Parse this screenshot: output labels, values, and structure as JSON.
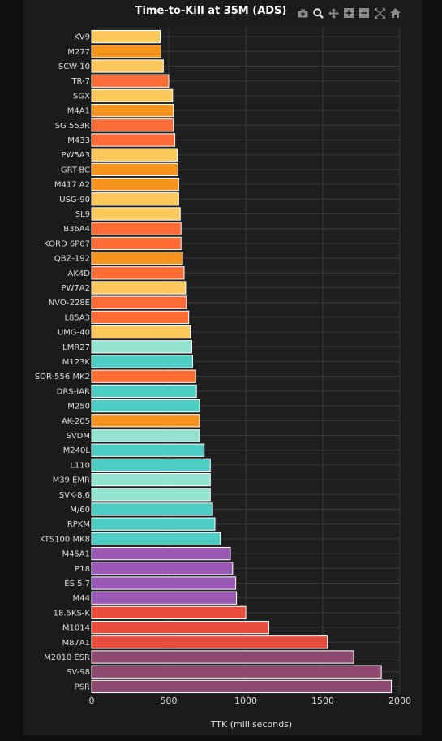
{
  "chart_data": {
    "type": "bar",
    "orientation": "horizontal",
    "title": "Time-to-Kill at 35M (ADS)",
    "xlabel": "TTK (milliseconds)",
    "ylabel": "",
    "xlim": [
      0,
      2000
    ],
    "xticks": [
      0,
      500,
      1000,
      1500,
      2000
    ],
    "grid": true,
    "categories": [
      "KV9",
      "M277",
      "SCW-10",
      "TR-7",
      "SGX",
      "M4A1",
      "SG 553R",
      "M433",
      "PW5A3",
      "GRT-BC",
      "M417 A2",
      "USG-90",
      "SL9",
      "B36A4",
      "KORD 6P67",
      "QBZ-192",
      "AK4D",
      "PW7A2",
      "NVO-228E",
      "L85A3",
      "UMG-40",
      "LMR27",
      "M123K",
      "SOR-556 MK2",
      "DRS-IAR",
      "M250",
      "AK-205",
      "SVDM",
      "M240L",
      "L110",
      "M39 EMR",
      "SVK-8.6",
      "M/60",
      "RPKM",
      "KTS100 MK8",
      "M45A1",
      "P18",
      "ES 5.7",
      "M44",
      "18.5KS-K",
      "M1014",
      "M87A1",
      "M2010 ESR",
      "SV-98",
      "PSR"
    ],
    "values": [
      445,
      450,
      465,
      500,
      525,
      530,
      530,
      540,
      555,
      560,
      565,
      565,
      575,
      580,
      580,
      590,
      600,
      610,
      615,
      630,
      640,
      650,
      655,
      675,
      680,
      700,
      700,
      700,
      730,
      770,
      770,
      770,
      785,
      800,
      835,
      900,
      915,
      935,
      940,
      1000,
      1150,
      1530,
      1700,
      1880,
      1945
    ],
    "colors": [
      "#fec85a",
      "#f7941d",
      "#fec85a",
      "#ff6b35",
      "#fec85a",
      "#f7941d",
      "#ff6b35",
      "#ff6b35",
      "#fec85a",
      "#f7941d",
      "#f7941d",
      "#fec85a",
      "#fec85a",
      "#ff6b35",
      "#ff6b35",
      "#f7941d",
      "#ff6b35",
      "#fec85a",
      "#ff6b35",
      "#ff6b35",
      "#fec85a",
      "#94e3d1",
      "#4ecdc4",
      "#ff6b35",
      "#4ecdc4",
      "#4ecdc4",
      "#f7941d",
      "#94e3d1",
      "#4ecdc4",
      "#4ecdc4",
      "#94e3d1",
      "#94e3d1",
      "#4ecdc4",
      "#4ecdc4",
      "#4ecdc4",
      "#9b59b6",
      "#9b59b6",
      "#9b59b6",
      "#9b59b6",
      "#e74c3c",
      "#e74c3c",
      "#e74c3c",
      "#8e4a6e",
      "#8e4a6e",
      "#8e4a6e"
    ]
  },
  "modebar": {
    "icons": [
      "camera-icon",
      "zoom-icon",
      "pan-icon",
      "zoom-in-icon",
      "zoom-out-icon",
      "autoscale-icon",
      "reset-axes-icon"
    ]
  },
  "colors": {
    "background": "#0f0f0f",
    "panel": "#1b1b1b",
    "plot_area": "#1f1f1f",
    "grid": "#3a3a3a",
    "text": "#dddddd"
  }
}
